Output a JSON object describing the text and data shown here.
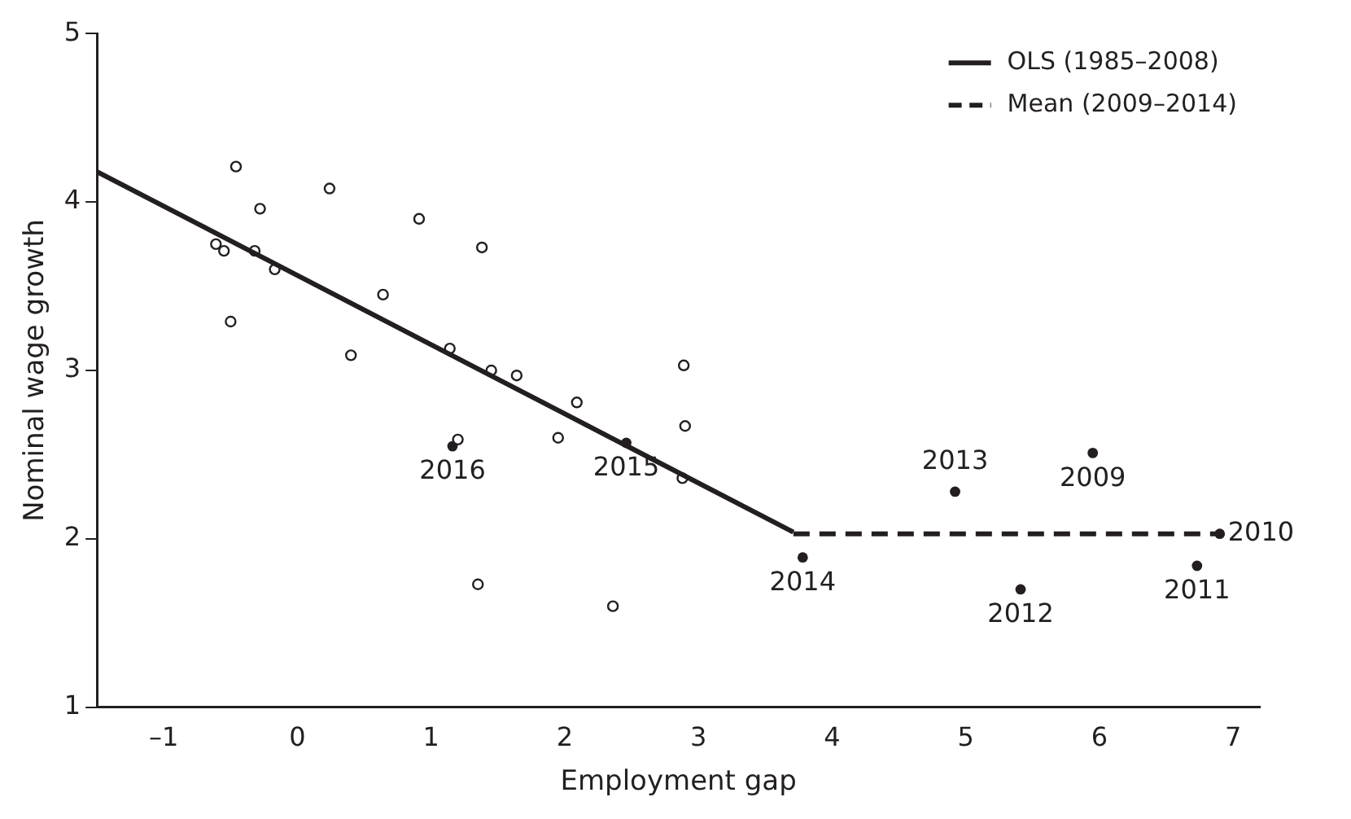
{
  "chart_data": {
    "type": "scatter",
    "xlabel": "Employment gap",
    "ylabel": "Nominal wage growth",
    "xlim": [
      -1.5,
      7.2
    ],
    "xticks": [
      {
        "value": -1,
        "label": "–1"
      },
      0,
      1,
      2,
      3,
      4,
      5,
      6,
      7
    ],
    "ylim": [
      1,
      5
    ],
    "yticks": [
      1,
      2,
      3,
      4,
      5
    ],
    "grid": false,
    "legend": "top right",
    "marker": "circle",
    "series": [
      {
        "type": "line",
        "name": "OLS (1985–2008)",
        "color": "#231f20",
        "line_style": "solid",
        "marker": "none",
        "x": [
          -1.5,
          3.71
        ],
        "values": [
          4.18,
          2.04
        ]
      },
      {
        "type": "line",
        "name": "Mean (2009–2014)",
        "color": "#231f20",
        "line_style": "dashed",
        "marker": "none",
        "x": [
          3.71,
          6.9
        ],
        "values": [
          2.03,
          2.03
        ]
      },
      {
        "color": "#231f20",
        "x": [
          -0.46,
          0.24,
          -0.28,
          0.91,
          1.38,
          -0.61,
          -0.55,
          -0.32,
          -0.17,
          -0.5,
          0.64,
          0.4,
          1.14,
          1.45,
          1.64,
          2.09,
          1.95,
          1.2,
          2.89,
          2.9,
          2.88,
          1.35,
          2.36
        ],
        "values": [
          4.21,
          4.08,
          3.96,
          3.9,
          3.73,
          3.75,
          3.71,
          3.71,
          3.6,
          3.29,
          3.45,
          3.09,
          3.13,
          3.0,
          2.97,
          2.81,
          2.6,
          2.59,
          3.03,
          2.67,
          2.36,
          1.73,
          1.6
        ]
      },
      {
        "color": "#231f20",
        "x": [
          1.16,
          2.46,
          3.78,
          4.92,
          5.41,
          6.73,
          6.9,
          5.95
        ],
        "values": [
          2.55,
          2.57,
          1.89,
          2.28,
          1.7,
          1.84,
          2.03,
          2.51
        ]
      }
    ],
    "annotations": [
      {
        "text": "2016",
        "x": 1.16,
        "y": 2.55
      },
      {
        "text": "2015",
        "x": 2.46,
        "y": 2.57
      },
      {
        "text": "2014",
        "x": 3.78,
        "y": 1.89
      },
      {
        "text": "2013",
        "x": 4.92,
        "y": 2.28
      },
      {
        "text": "2012",
        "x": 5.41,
        "y": 1.7
      },
      {
        "text": "2011",
        "x": 6.73,
        "y": 1.84
      },
      {
        "text": "2010",
        "x": 6.9,
        "y": 2.03
      },
      {
        "text": "2009",
        "x": 5.95,
        "y": 2.51
      }
    ]
  }
}
